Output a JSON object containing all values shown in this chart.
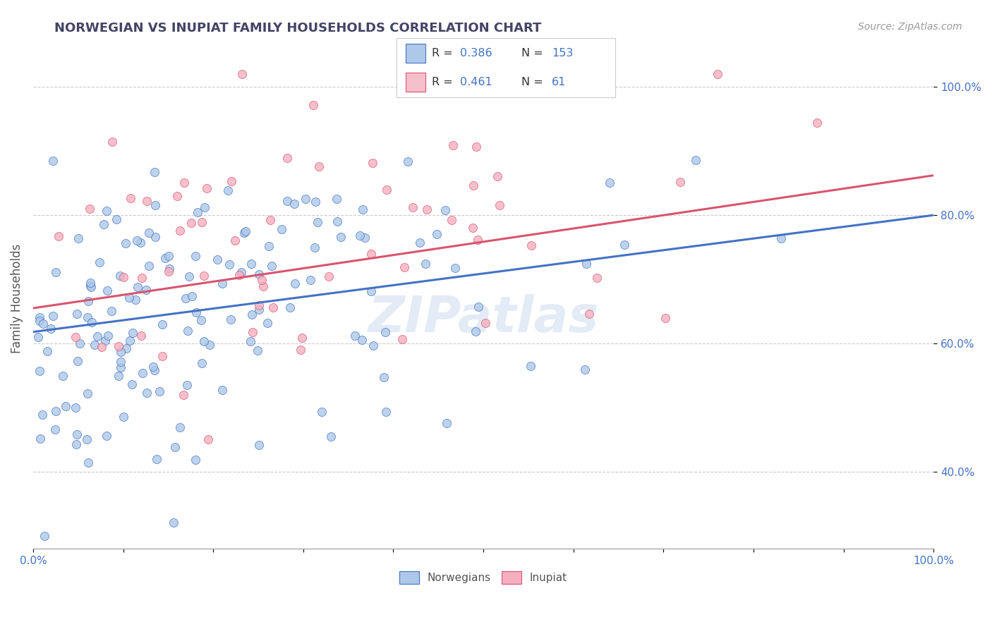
{
  "title": "NORWEGIAN VS INUPIAT FAMILY HOUSEHOLDS CORRELATION CHART",
  "source": "Source: ZipAtlas.com",
  "ylabel": "Family Households",
  "xlim": [
    0.0,
    1.0
  ],
  "ylim": [
    0.28,
    1.06
  ],
  "norwegian_R": 0.386,
  "norwegian_N": 153,
  "inupiat_R": 0.461,
  "inupiat_N": 61,
  "norwegian_color": "#adc8e8",
  "inupiat_color": "#f5afc0",
  "norwegian_line_color": "#4472c4",
  "inupiat_line_color": "#d9546e",
  "legend_box_color_norwegian": "#adc8e8",
  "legend_box_color_inupiat": "#f5bfcc",
  "title_color": "#444466",
  "tick_label_color": "#4472c4",
  "watermark_color": "#ccdcef",
  "grid_color": "#cccccc",
  "background_color": "#ffffff",
  "nor_line_start_y": 0.618,
  "nor_line_end_y": 0.8,
  "inu_line_start_y": 0.655,
  "inu_line_end_y": 0.862,
  "ytick_positions": [
    0.4,
    0.6,
    0.8,
    1.0
  ],
  "ytick_labels": [
    "40.0%",
    "60.0%",
    "80.0%",
    "100.0%"
  ]
}
